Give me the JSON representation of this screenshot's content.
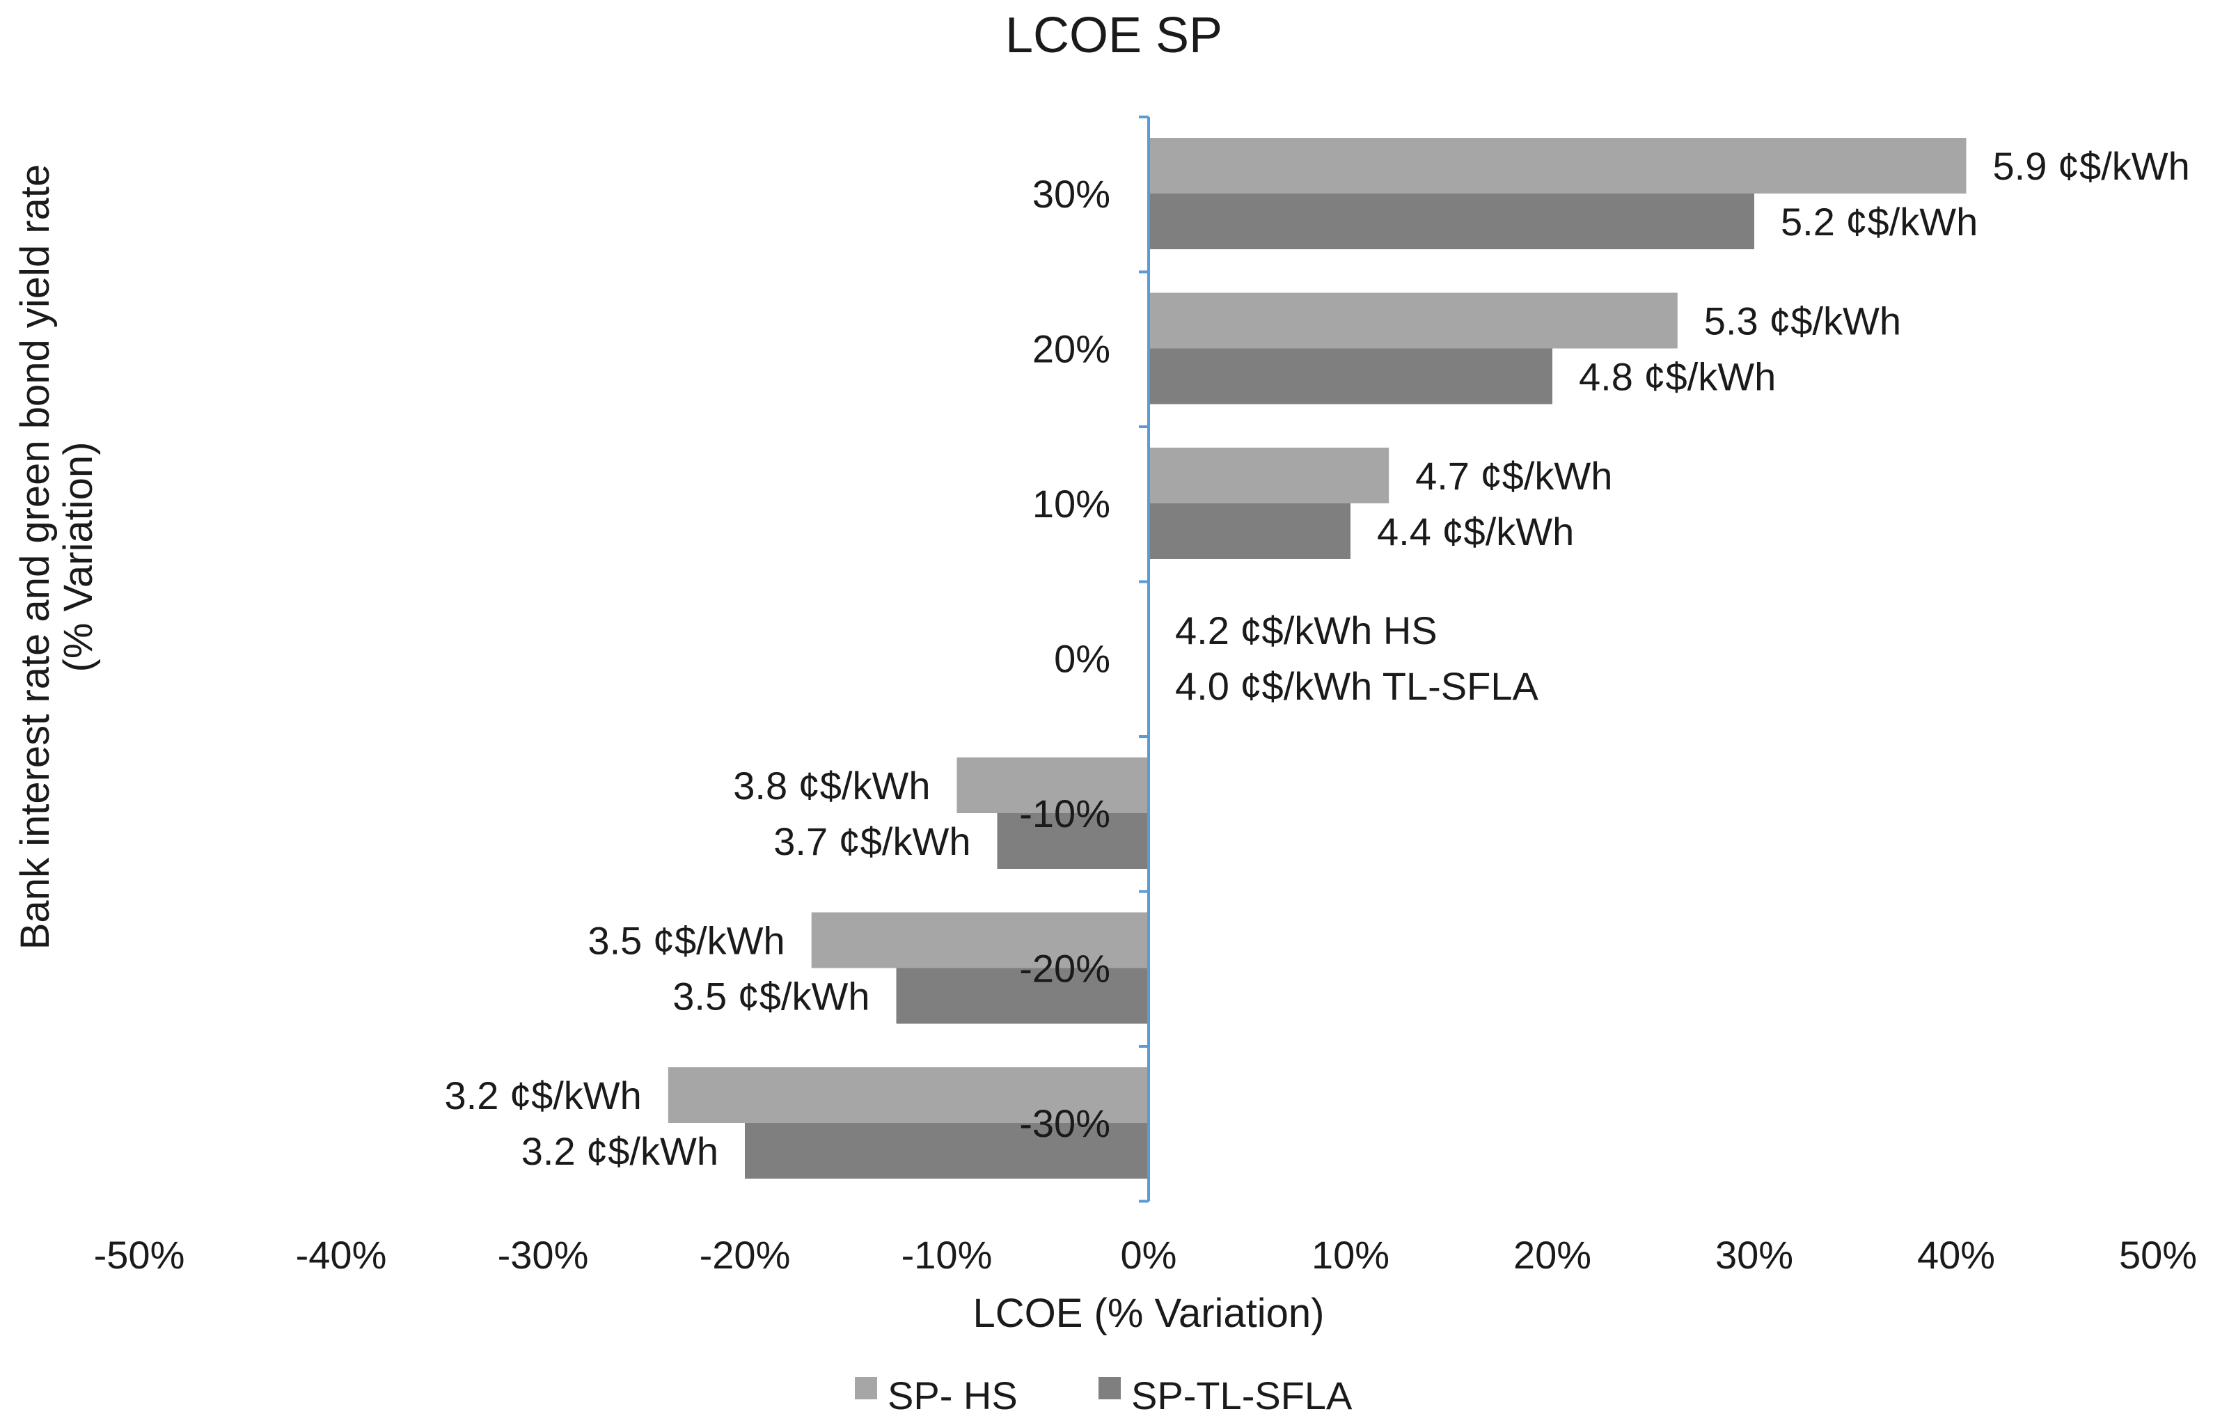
{
  "chart_data": {
    "type": "bar",
    "orientation": "horizontal",
    "title": "LCOE SP",
    "xlabel": "LCOE (% Variation)",
    "ylabel": "Bank interest rate and green bond yield rate",
    "ylabel_line2": "(% Variation)",
    "xlim": [
      -50,
      50
    ],
    "x_ticks": [
      "-50%",
      "-40%",
      "-30%",
      "-20%",
      "-10%",
      "0%",
      "10%",
      "20%",
      "30%",
      "40%",
      "50%"
    ],
    "categories": [
      "30%",
      "20%",
      "10%",
      "0%",
      "-10%",
      "-20%",
      "-30%"
    ],
    "series": [
      {
        "name": "SP- HS",
        "color": "#a6a6a6",
        "values": [
          40.5,
          26.2,
          11.9,
          0,
          -9.5,
          -16.7,
          -23.8
        ],
        "labels": [
          "5.9 ¢$/kWh",
          "5.3 ¢$/kWh",
          "4.7 ¢$/kWh",
          "",
          "3.8 ¢$/kWh",
          "3.5 ¢$/kWh",
          "3.2 ¢$/kWh"
        ]
      },
      {
        "name": "SP-TL-SFLA",
        "color": "#7f7f7f",
        "values": [
          30,
          20,
          10,
          0,
          -7.5,
          -12.5,
          -20
        ],
        "labels": [
          "5.2 ¢$/kWh",
          "4.8 ¢$/kWh",
          "4.4 ¢$/kWh",
          "",
          "3.7 ¢$/kWh",
          "3.5 ¢$/kWh",
          "3.2 ¢$/kWh"
        ]
      }
    ],
    "baseline_annotation": [
      "4.2 ¢$/kWh HS",
      "4.0 ¢$/kWh TL-SFLA"
    ],
    "axis_color": "#5b9bd5",
    "legend_position": "bottom",
    "grid": false
  }
}
